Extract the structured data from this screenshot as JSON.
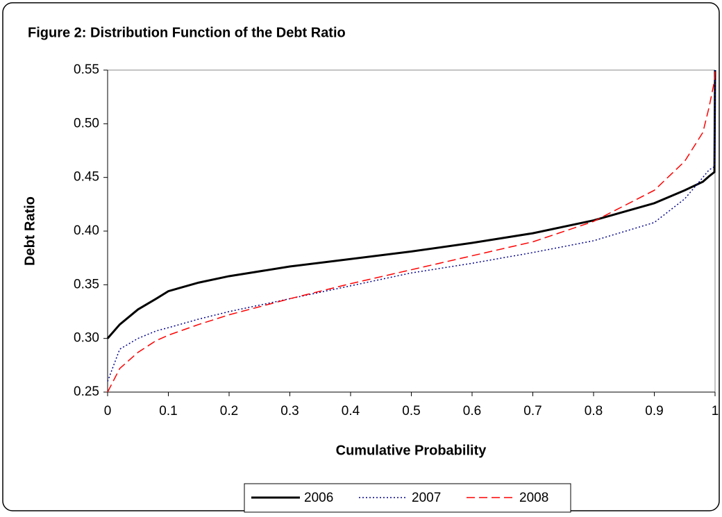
{
  "chart_data": {
    "type": "line",
    "title": "Figure 2: Distribution Function of the Debt Ratio",
    "x_label": "Cumulative Probability",
    "y_label": "Debt Ratio",
    "x": [
      0,
      0.02,
      0.05,
      0.08,
      0.1,
      0.15,
      0.2,
      0.3,
      0.4,
      0.5,
      0.6,
      0.7,
      0.8,
      0.9,
      0.95,
      0.98,
      0.99,
      0.999,
      1
    ],
    "series": [
      {
        "name": "2006",
        "color": "#000000",
        "style": "solid",
        "values": [
          0.3,
          0.313,
          0.327,
          0.337,
          0.344,
          0.352,
          0.358,
          0.367,
          0.374,
          0.381,
          0.389,
          0.398,
          0.41,
          0.426,
          0.438,
          0.446,
          0.451,
          0.455,
          0.55
        ]
      },
      {
        "name": "2007",
        "color": "#00008b",
        "style": "dotted",
        "values": [
          0.26,
          0.29,
          0.3,
          0.307,
          0.31,
          0.318,
          0.325,
          0.337,
          0.349,
          0.361,
          0.37,
          0.38,
          0.391,
          0.408,
          0.43,
          0.45,
          0.457,
          0.46,
          0.55
        ]
      },
      {
        "name": "2008",
        "color": "#ff0000",
        "style": "dashed",
        "values": [
          0.25,
          0.272,
          0.287,
          0.298,
          0.303,
          0.313,
          0.322,
          0.337,
          0.351,
          0.364,
          0.377,
          0.39,
          0.409,
          0.438,
          0.465,
          0.492,
          0.515,
          0.54,
          0.55
        ]
      }
    ],
    "xlim": [
      0,
      1
    ],
    "xticks": [
      0,
      0.1,
      0.2,
      0.3,
      0.4,
      0.5,
      0.6,
      0.7,
      0.8,
      0.9,
      1
    ],
    "ylim": [
      0.25,
      0.55
    ],
    "yticks": [
      0.25,
      {
        "value": 0.3,
        "label": "0.30"
      },
      0.35,
      {
        "value": 0.4,
        "label": "0.40"
      },
      0.45,
      {
        "value": 0.5,
        "label": "0.50"
      },
      0.55
    ],
    "legend": "bottom"
  }
}
